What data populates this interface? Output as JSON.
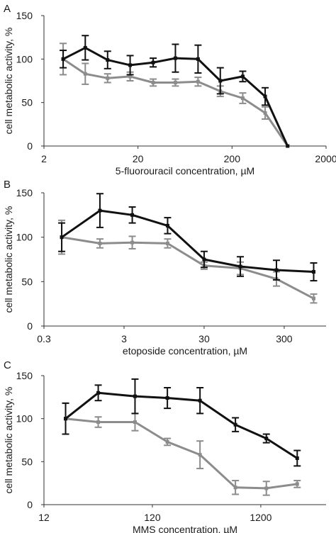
{
  "colors": {
    "black_series": "#111111",
    "gray_series": "#8c8c8c",
    "axis": "#333333"
  },
  "chart_data": [
    {
      "type": "line",
      "panel_label": "A",
      "xlabel": "5-fluorouracil concentration, µM",
      "ylabel": "cell metabolic activity, %",
      "x_scale": "log",
      "xlim": [
        2,
        2000
      ],
      "x_ticks": [
        {
          "v": 2,
          "label": "2"
        },
        {
          "v": 20,
          "label": "20"
        },
        {
          "v": 200,
          "label": "200"
        },
        {
          "v": 2000,
          "label": "2000"
        }
      ],
      "ylim": [
        0,
        150
      ],
      "y_ticks": [
        0,
        50,
        100,
        150
      ],
      "grid": false,
      "series": [
        {
          "color": "#111111",
          "x": [
            3.2,
            5.5,
            9.5,
            16.5,
            29,
            50,
            87,
            150,
            260,
            450,
            780
          ],
          "y": [
            100,
            113,
            99,
            93,
            96,
            101,
            100,
            75,
            80,
            57,
            0
          ],
          "err": [
            10,
            14,
            10,
            11,
            5,
            16,
            16,
            15,
            6,
            10,
            0
          ]
        },
        {
          "color": "#8c8c8c",
          "x": [
            3.2,
            5.5,
            9.5,
            16.5,
            29,
            50,
            87,
            150,
            260,
            450,
            780
          ],
          "y": [
            100,
            83,
            78,
            80,
            73,
            73,
            74,
            63,
            55,
            38,
            0
          ],
          "err": [
            18,
            12,
            5,
            5,
            4,
            4,
            5,
            6,
            6,
            7,
            0
          ]
        }
      ]
    },
    {
      "type": "line",
      "panel_label": "B",
      "xlabel": "etoposide concentration, µM",
      "ylabel": "cell metabolic activity, %",
      "x_scale": "log",
      "xlim": [
        0.3,
        1000
      ],
      "x_ticks": [
        {
          "v": 0.3,
          "label": "0.3"
        },
        {
          "v": 3,
          "label": "3"
        },
        {
          "v": 30,
          "label": "30"
        },
        {
          "v": 300,
          "label": "300"
        }
      ],
      "ylim": [
        0,
        150
      ],
      "y_ticks": [
        0,
        50,
        100,
        150
      ],
      "grid": false,
      "series": [
        {
          "color": "#111111",
          "x": [
            0.5,
            1.5,
            3.8,
            10.5,
            30,
            85,
            240,
            700
          ],
          "y": [
            100,
            130,
            125,
            113,
            75,
            67,
            63,
            61
          ],
          "err": [
            16,
            19,
            9,
            9,
            9,
            11,
            11,
            10
          ]
        },
        {
          "color": "#8c8c8c",
          "x": [
            0.5,
            1.5,
            3.8,
            10.5,
            30,
            85,
            240,
            700
          ],
          "y": [
            100,
            93,
            94,
            93,
            68,
            65,
            53,
            31
          ],
          "err": [
            19,
            5,
            7,
            5,
            4,
            7,
            8,
            5
          ]
        }
      ]
    },
    {
      "type": "line",
      "panel_label": "C",
      "xlabel": "MMS concentration, µM",
      "ylabel": "cell metabolic activity, %",
      "x_scale": "log",
      "xlim": [
        12,
        4800
      ],
      "x_ticks": [
        {
          "v": 12,
          "label": "12"
        },
        {
          "v": 120,
          "label": "120"
        },
        {
          "v": 1200,
          "label": "1200"
        }
      ],
      "ylim": [
        0,
        150
      ],
      "y_ticks": [
        0,
        50,
        100,
        150
      ],
      "grid": false,
      "series": [
        {
          "color": "#111111",
          "x": [
            19,
            38,
            83,
            165,
            330,
            700,
            1350,
            2600
          ],
          "y": [
            100,
            130,
            126,
            124,
            121,
            93,
            77,
            54
          ],
          "err": [
            18,
            9,
            20,
            12,
            15,
            8,
            5,
            9
          ]
        },
        {
          "color": "#8c8c8c",
          "x": [
            19,
            38,
            83,
            165,
            330,
            700,
            1350,
            2600
          ],
          "y": [
            100,
            96,
            96,
            73,
            58,
            20,
            19,
            24
          ],
          "err": [
            18,
            6,
            10,
            4,
            16,
            8,
            8,
            4
          ]
        }
      ]
    }
  ]
}
